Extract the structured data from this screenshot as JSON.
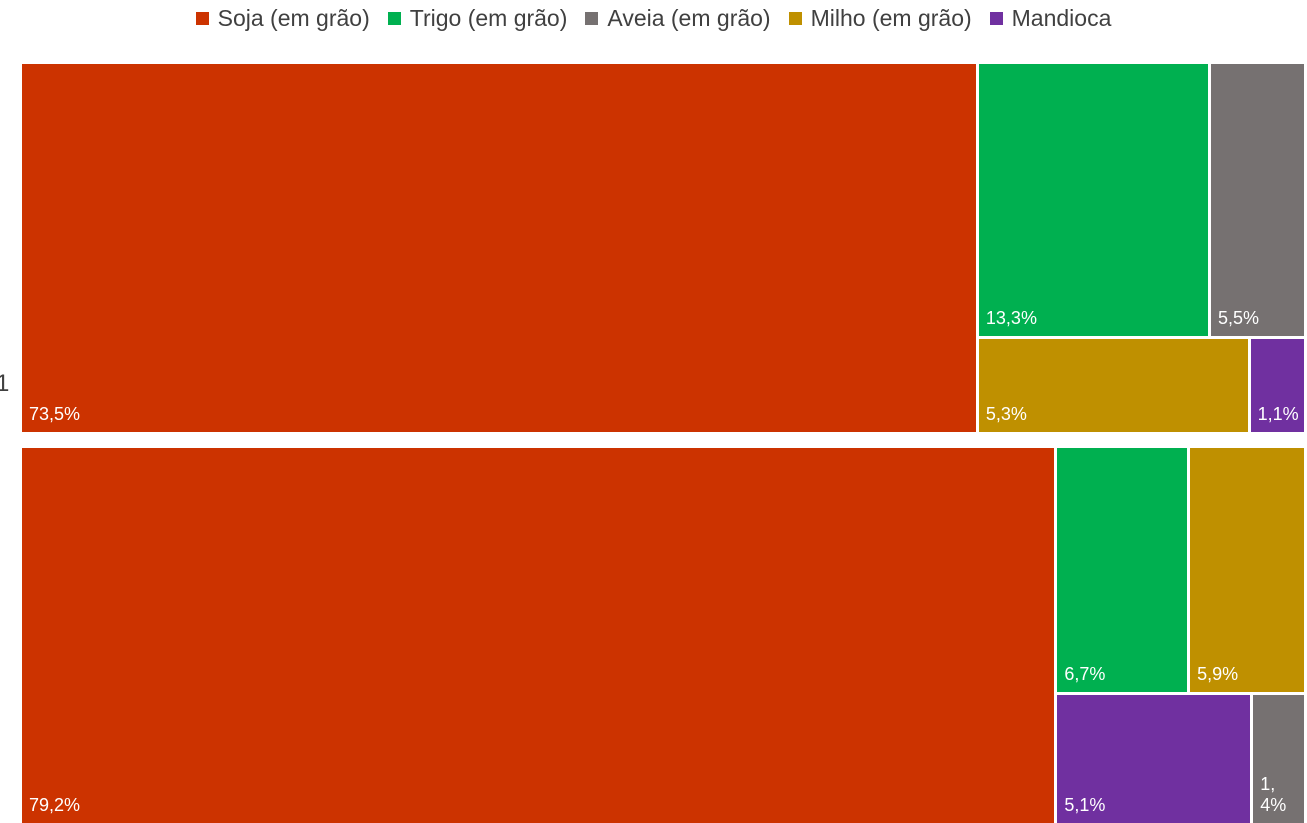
{
  "legend": [
    {
      "label": "Soja (em grão)",
      "color": "#CC3300"
    },
    {
      "label": "Trigo (em grão)",
      "color": "#00B050"
    },
    {
      "label": "Aveia (em grão)",
      "color": "#767171"
    },
    {
      "label": "Milho (em grão)",
      "color": "#BF9000"
    },
    {
      "label": "Mandioca",
      "color": "#7030A0"
    }
  ],
  "row_labels": [
    "1"
  ],
  "chart_data": {
    "type": "treemap",
    "series": [
      {
        "name": "",
        "items": [
          {
            "category": "Soja (em grão)",
            "value": 73.5,
            "label": "73,5%"
          },
          {
            "category": "Trigo (em grão)",
            "value": 13.3,
            "label": "13,3%"
          },
          {
            "category": "Aveia (em grão)",
            "value": 5.5,
            "label": "5,5%"
          },
          {
            "category": "Milho (em grão)",
            "value": 5.3,
            "label": "5,3%"
          },
          {
            "category": "Mandioca",
            "value": 1.1,
            "label": "1,1%"
          }
        ]
      },
      {
        "name": "",
        "items": [
          {
            "category": "Soja (em grão)",
            "value": 79.2,
            "label": "79,2%"
          },
          {
            "category": "Trigo (em grão)",
            "value": 6.7,
            "label": "6,7%"
          },
          {
            "category": "Milho (em grão)",
            "value": 5.9,
            "label": "5,9%"
          },
          {
            "category": "Mandioca",
            "value": 5.1,
            "label": "5,1%"
          },
          {
            "category": "Aveia (em grão)",
            "value": 1.4,
            "label": "1,4%"
          }
        ]
      }
    ]
  }
}
